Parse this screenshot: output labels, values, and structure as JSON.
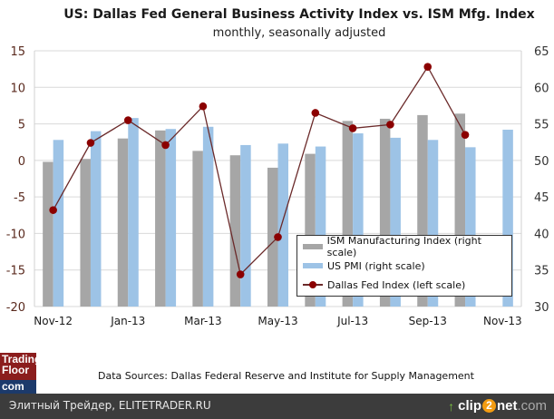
{
  "chart_data": {
    "type": "bar",
    "title": "US: Dallas Fed General Business Activity Index vs. ISM Mfg. Index",
    "subtitle": "monthly, seasonally adjusted",
    "categories": [
      "Nov-12",
      "Dec-12",
      "Jan-13",
      "Feb-13",
      "Mar-13",
      "Apr-13",
      "May-13",
      "Jun-13",
      "Jul-13",
      "Aug-13",
      "Sep-13",
      "Oct-13",
      "Nov-13"
    ],
    "x_tick_labels": [
      "Nov-12",
      "Jan-13",
      "Mar-13",
      "May-13",
      "Jul-13",
      "Sep-13",
      "Nov-13"
    ],
    "left_axis": {
      "label": "",
      "ylim": [
        -20,
        15
      ],
      "ticks": [
        15,
        10,
        5,
        0,
        -5,
        -10,
        -15,
        -20
      ]
    },
    "right_axis": {
      "label": "",
      "ylim": [
        30,
        65
      ],
      "ticks": [
        65,
        60,
        55,
        50,
        45,
        40,
        35,
        30
      ]
    },
    "grid": true,
    "legend_position": "bottom-right",
    "series": [
      {
        "name": "ISM Manufacturing Index (right scale)",
        "type": "bar",
        "axis": "right",
        "color": "#a6a6a6",
        "values": [
          49.8,
          50.2,
          53.0,
          54.1,
          51.3,
          50.7,
          49.0,
          50.9,
          55.4,
          55.7,
          56.2,
          56.4,
          null
        ]
      },
      {
        "name": "US PMI (right scale)",
        "type": "bar",
        "axis": "right",
        "color": "#9dc3e6",
        "values": [
          52.8,
          54.0,
          55.8,
          54.3,
          54.6,
          52.1,
          52.3,
          51.9,
          53.7,
          53.1,
          52.8,
          51.8,
          54.2
        ]
      },
      {
        "name": "Dallas Fed Index (left scale)",
        "type": "line",
        "axis": "left",
        "color": "#8b0000",
        "values": [
          -6.8,
          2.4,
          5.5,
          2.1,
          7.4,
          -15.6,
          -10.5,
          6.5,
          4.4,
          4.9,
          12.8,
          3.5,
          null
        ]
      }
    ]
  },
  "colors": {
    "left_axis_text": "#5a2a1e",
    "right_axis_text": "#333333",
    "gridline": "#d9d9d9",
    "line": "#6b2a2a"
  },
  "legend": {
    "items": [
      "ISM Manufacturing Index (right scale)",
      "US PMI (right scale)",
      "Dallas Fed Index (left scale)"
    ]
  },
  "source": "Data Sources: Dallas Federal Reserve and Institute for Supply Management",
  "logo": {
    "line1": "Trading",
    "line2": "Floor",
    "line3": "com"
  },
  "footer": {
    "text": "Элитный Трейдер, ELITETRADER.RU",
    "brand_prefix": "clip",
    "brand_two": "2",
    "brand_net": "net",
    "brand_com": ".com",
    "brand_arrow_icon": "↑"
  }
}
